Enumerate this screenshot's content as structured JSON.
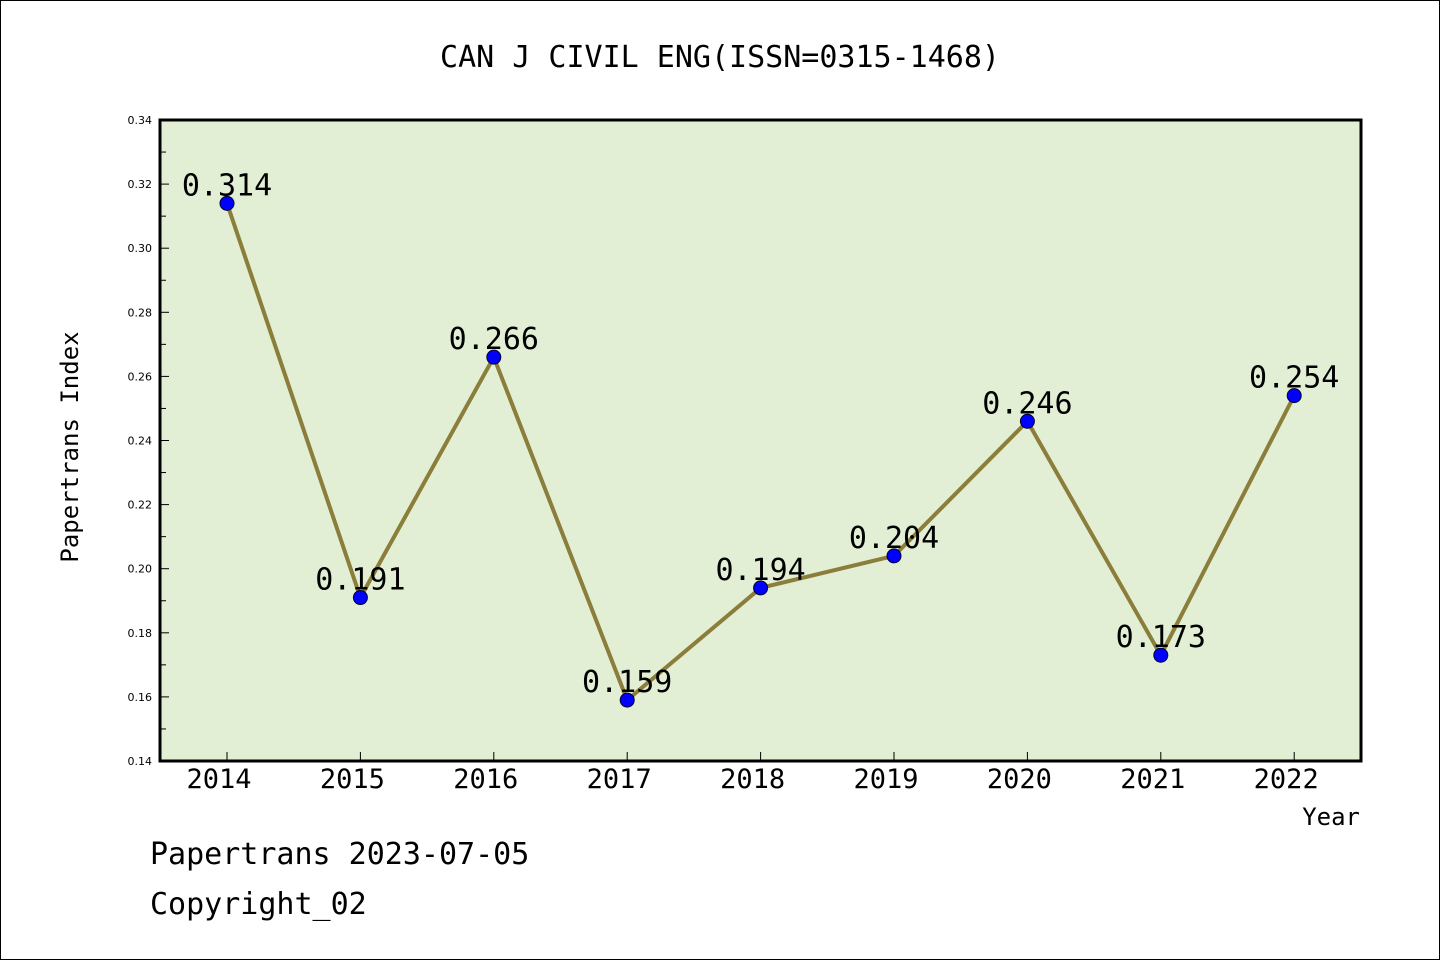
{
  "chart_data": {
    "type": "line",
    "title": "CAN J CIVIL ENG(ISSN=0315-1468)",
    "xlabel": "Year",
    "ylabel": "Papertrans Index",
    "categories": [
      "2014",
      "2015",
      "2016",
      "2017",
      "2018",
      "2019",
      "2020",
      "2021",
      "2022"
    ],
    "values": [
      0.314,
      0.191,
      0.266,
      0.159,
      0.194,
      0.204,
      0.246,
      0.173,
      0.254
    ],
    "data_labels": [
      "0.314",
      "0.191",
      "0.266",
      "0.159",
      "0.194",
      "0.204",
      "0.246",
      "0.173",
      "0.254"
    ],
    "ylim": [
      0.14,
      0.34
    ],
    "yticks": [
      "0.14",
      "0.16",
      "0.18",
      "0.20",
      "0.22",
      "0.24",
      "0.26",
      "0.28",
      "0.30",
      "0.32",
      "0.34"
    ],
    "grid": false,
    "colors": {
      "line": "#8b7d3a",
      "marker": "#0000ff",
      "plot_background": "#e2efd5",
      "frame": "#000000"
    }
  },
  "footer": {
    "date_line": "Papertrans 2023-07-05",
    "copyright_line": "Copyright_02"
  }
}
